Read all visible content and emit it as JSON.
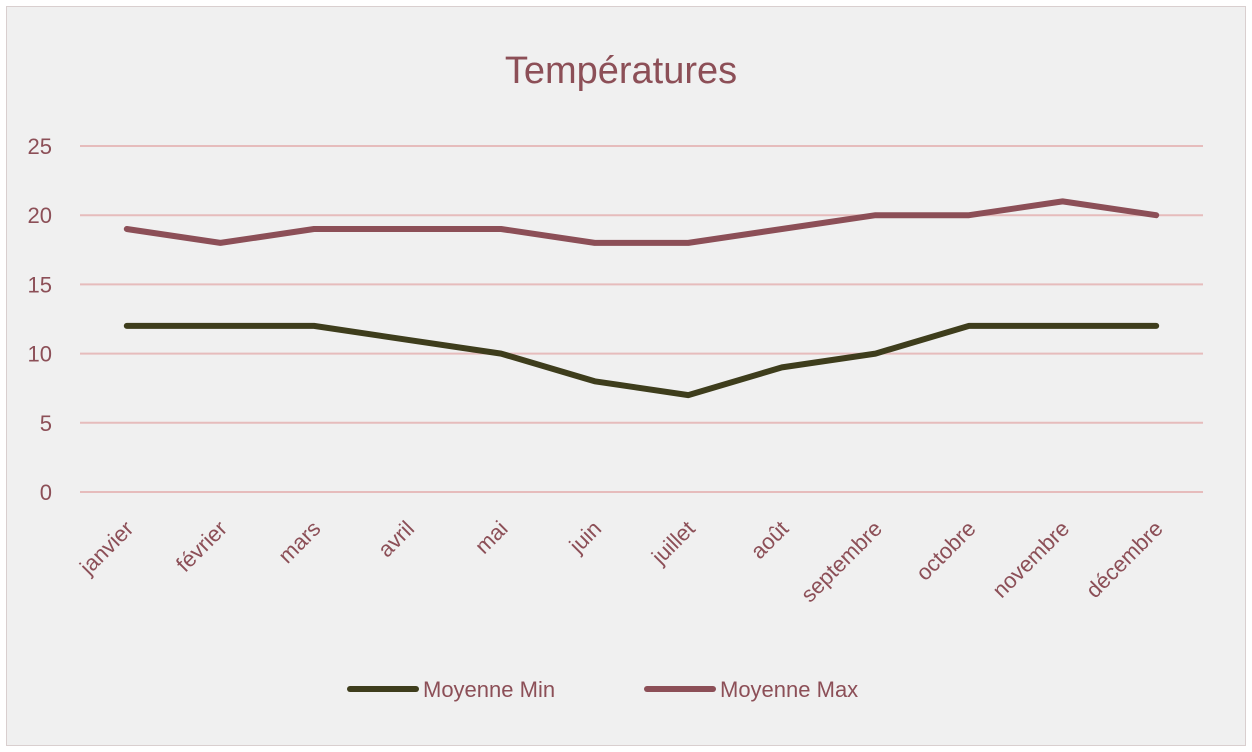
{
  "chart_data": {
    "type": "line",
    "title": "Températures",
    "xlabel": "",
    "ylabel": "",
    "categories": [
      "janvier",
      "février",
      "mars",
      "avril",
      "mai",
      "juin",
      "juillet",
      "août",
      "septembre",
      "octobre",
      "novembre",
      "décembre"
    ],
    "series": [
      {
        "name": "Moyenne Min",
        "color": "#3e3d1c",
        "values": [
          12,
          12,
          12,
          11,
          10,
          8,
          7,
          9,
          10,
          12,
          12,
          12
        ]
      },
      {
        "name": "Moyenne Max",
        "color": "#8c4f57",
        "values": [
          19,
          18,
          19,
          19,
          19,
          18,
          18,
          19,
          20,
          20,
          21,
          20
        ]
      }
    ],
    "ylim": [
      0,
      25
    ],
    "yticks": [
      0,
      5,
      10,
      15,
      20,
      25
    ],
    "grid": true,
    "legend_position": "bottom"
  }
}
